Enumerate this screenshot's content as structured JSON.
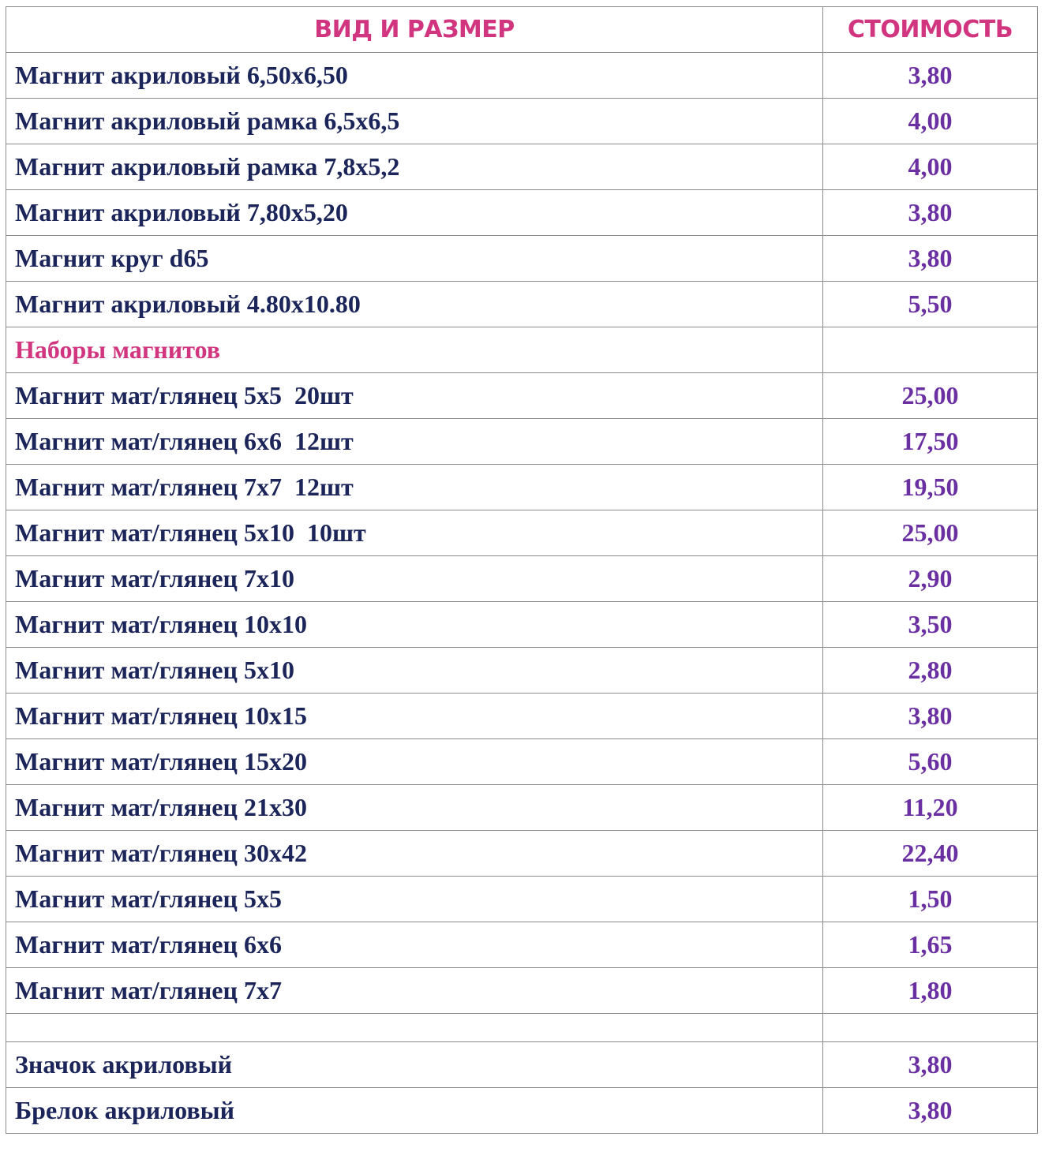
{
  "header": {
    "name_col": "ВИД И РАЗМЕР",
    "price_col": "СТОИМОСТЬ"
  },
  "rows": [
    {
      "name": "Магнит акриловый 6,50х6,50",
      "price": "3,80"
    },
    {
      "name": "Магнит акриловый рамка 6,5х6,5",
      "price": "4,00"
    },
    {
      "name": "Магнит акриловый рамка 7,8х5,2",
      "price": "4,00"
    },
    {
      "name": "Магнит акриловый 7,80х5,20",
      "price": "3,80"
    },
    {
      "name": "Магнит круг d65",
      "price": "3,80"
    },
    {
      "name": "Магнит акриловый 4.80х10.80",
      "price": "5,50"
    },
    {
      "name": "Наборы магнитов",
      "price": ""
    },
    {
      "name": "Магнит мат/глянец 5х5  20шт",
      "price": "25,00"
    },
    {
      "name": "Магнит мат/глянец 6х6  12шт",
      "price": "17,50"
    },
    {
      "name": "Магнит мат/глянец 7х7  12шт",
      "price": "19,50"
    },
    {
      "name": "Магнит мат/глянец 5х10  10шт",
      "price": "25,00"
    },
    {
      "name": "Магнит мат/глянец 7х10",
      "price": "2,90"
    },
    {
      "name": "Магнит мат/глянец 10х10",
      "price": "3,50"
    },
    {
      "name": "Магнит мат/глянец 5х10",
      "price": "2,80"
    },
    {
      "name": "Магнит мат/глянец 10х15",
      "price": "3,80"
    },
    {
      "name": "Магнит мат/глянец 15х20",
      "price": "5,60"
    },
    {
      "name": "Магнит мат/глянец 21х30",
      "price": "11,20"
    },
    {
      "name": "Магнит мат/глянец 30х42",
      "price": "22,40"
    },
    {
      "name": "Магнит мат/глянец 5х5",
      "price": "1,50"
    },
    {
      "name": "Магнит мат/глянец 6х6",
      "price": "1,65"
    },
    {
      "name": "Магнит мат/глянец 7х7",
      "price": "1,80"
    },
    {
      "name": "",
      "price": ""
    },
    {
      "name": "Значок акриловый",
      "price": "3,80"
    },
    {
      "name": "Брелок акриловый",
      "price": "3,80"
    }
  ],
  "colors": {
    "header": "#d1357f",
    "section": "#d1357f",
    "item_text": "#1b2559",
    "price_text": "#6a2fa1",
    "border": "#8c8c8c"
  }
}
